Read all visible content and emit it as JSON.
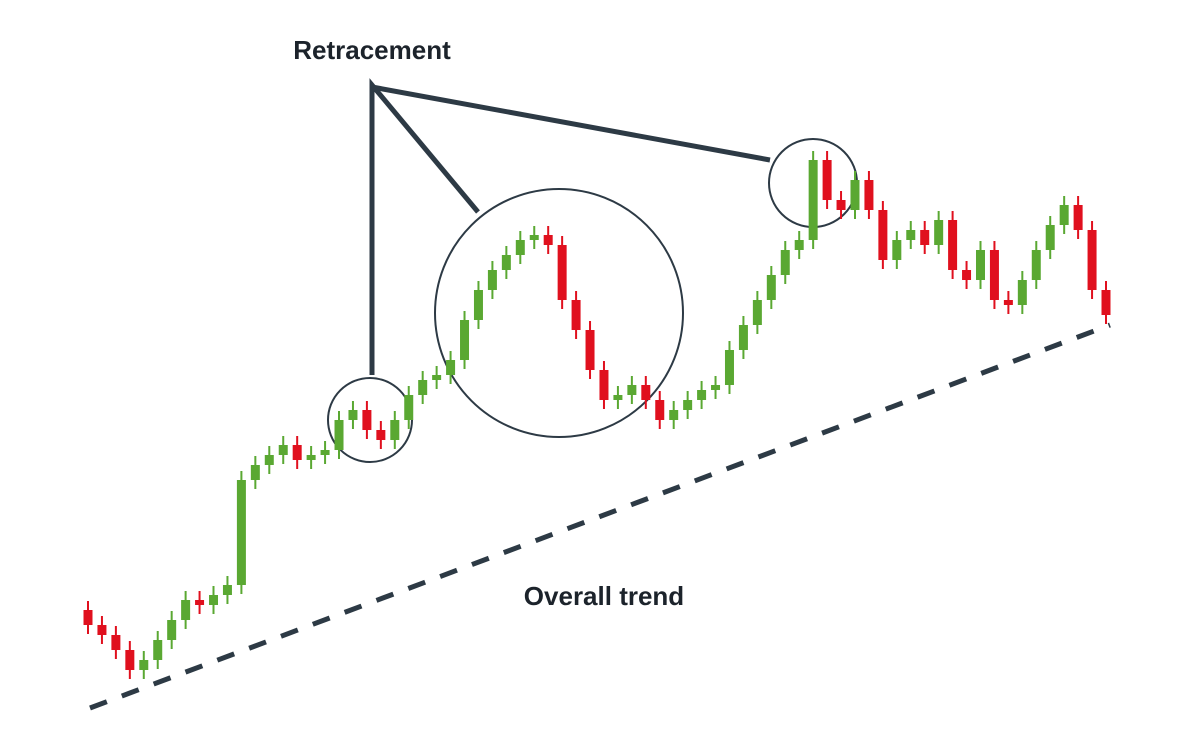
{
  "chart_data": {
    "type": "candlestick",
    "up_color": "#5aa832",
    "down_color": "#e0101e",
    "ylim": [
      0,
      752
    ],
    "open": [
      142,
      127,
      117,
      102,
      82,
      92,
      112,
      132,
      152,
      147,
      157,
      167,
      272,
      287,
      297,
      307,
      292,
      297,
      302,
      332,
      342,
      322,
      312,
      332,
      357,
      372,
      377,
      392,
      432,
      462,
      482,
      497,
      512,
      517,
      507,
      452,
      422,
      382,
      352,
      357,
      367,
      352,
      332,
      342,
      352,
      362,
      367,
      402,
      427,
      452,
      477,
      502,
      512,
      592,
      552,
      542,
      572,
      542,
      492,
      512,
      522,
      507,
      532,
      482,
      472,
      502,
      452,
      447,
      472,
      502,
      527,
      547,
      522,
      462
    ],
    "high": [
      151,
      136,
      126,
      111,
      101,
      121,
      141,
      161,
      161,
      166,
      176,
      281,
      296,
      306,
      316,
      316,
      306,
      311,
      341,
      351,
      351,
      331,
      341,
      366,
      381,
      386,
      401,
      441,
      471,
      491,
      506,
      521,
      526,
      526,
      516,
      461,
      431,
      391,
      366,
      376,
      376,
      361,
      351,
      361,
      371,
      376,
      411,
      436,
      461,
      486,
      511,
      521,
      601,
      601,
      561,
      581,
      581,
      551,
      521,
      531,
      531,
      541,
      541,
      491,
      511,
      511,
      461,
      481,
      511,
      536,
      556,
      556,
      531,
      471
    ],
    "low": [
      118,
      108,
      93,
      73,
      73,
      83,
      103,
      123,
      138,
      138,
      148,
      158,
      263,
      278,
      288,
      283,
      283,
      288,
      293,
      323,
      313,
      303,
      303,
      323,
      348,
      363,
      368,
      383,
      423,
      453,
      473,
      488,
      503,
      498,
      443,
      413,
      373,
      343,
      343,
      348,
      343,
      323,
      323,
      333,
      343,
      353,
      358,
      393,
      418,
      443,
      468,
      493,
      503,
      543,
      533,
      533,
      533,
      483,
      483,
      503,
      498,
      498,
      473,
      463,
      463,
      443,
      438,
      438,
      463,
      493,
      518,
      513,
      453,
      428
    ],
    "close": [
      127,
      117,
      102,
      82,
      92,
      112,
      132,
      152,
      147,
      157,
      167,
      272,
      287,
      297,
      307,
      292,
      297,
      302,
      332,
      342,
      322,
      312,
      332,
      357,
      372,
      377,
      392,
      432,
      462,
      482,
      497,
      512,
      517,
      507,
      452,
      422,
      382,
      352,
      357,
      367,
      352,
      332,
      342,
      352,
      362,
      367,
      402,
      427,
      452,
      477,
      502,
      512,
      592,
      552,
      542,
      572,
      542,
      492,
      512,
      522,
      507,
      532,
      482,
      472,
      502,
      452,
      447,
      472,
      502,
      527,
      547,
      522,
      462,
      437
    ],
    "annotations": {
      "retracement": "Retracement",
      "trend": "Overall trend"
    }
  }
}
